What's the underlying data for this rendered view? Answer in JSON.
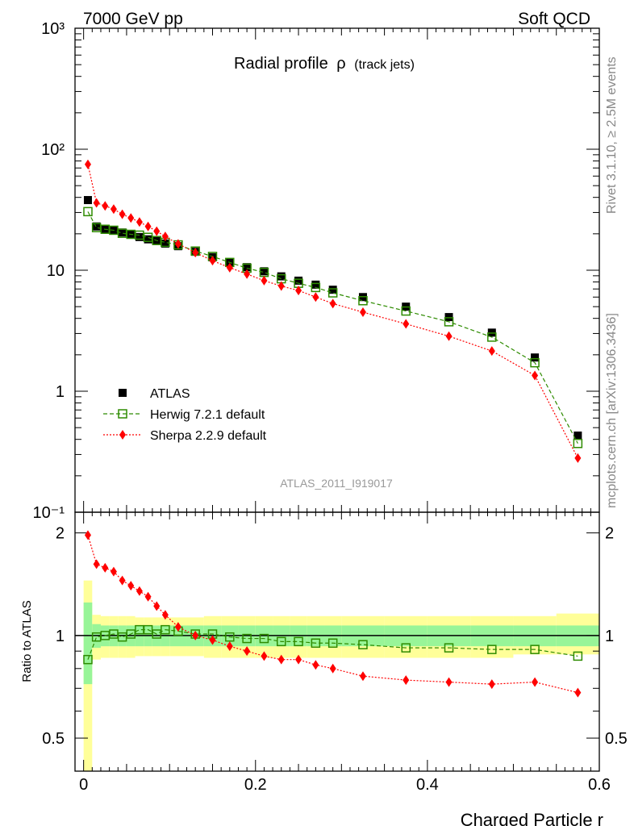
{
  "header": {
    "left": "7000 GeV pp",
    "right": "Soft QCD",
    "side_top": "Rivet 3.1.10, ≥ 2.5M events",
    "side_bottom": "mcplots.cern.ch [arXiv:1306.3436]"
  },
  "colors": {
    "atlas": "#000000",
    "herwig": "#2e8b00",
    "sherpa": "#ff0000",
    "band_inner": "#98f598",
    "band_outer": "#ffff99",
    "watermark": "#999999"
  },
  "chart_data": [
    {
      "type": "scatter",
      "panel": "main",
      "title": "Radial profile",
      "title_symbol": "ρ",
      "title_suffix": "(track jets)",
      "watermark": "ATLAS_2011_I919017",
      "yscale": "log",
      "xlim": [
        -0.01,
        0.6
      ],
      "ylim": [
        0.1,
        1000
      ],
      "y_tick_labels": [
        "10⁻¹",
        "1",
        "10",
        "10²",
        "10³"
      ],
      "legend_position": "lower-left",
      "x": [
        0.005,
        0.015,
        0.025,
        0.035,
        0.045,
        0.055,
        0.065,
        0.075,
        0.085,
        0.095,
        0.11,
        0.13,
        0.15,
        0.17,
        0.19,
        0.21,
        0.23,
        0.25,
        0.27,
        0.29,
        0.325,
        0.375,
        0.425,
        0.475,
        0.525,
        0.575
      ],
      "series": [
        {
          "name": "ATLAS",
          "marker": "square-filled",
          "values": [
            38,
            23,
            22,
            21.5,
            20.5,
            19.7,
            18.8,
            18,
            17.5,
            16.6,
            15.8,
            14.2,
            12.8,
            11.5,
            10.6,
            9.8,
            8.9,
            8.2,
            7.6,
            6.9,
            6.0,
            5.0,
            4.1,
            3.05,
            1.9,
            0.43
          ]
        },
        {
          "name": "Herwig 7.2.1 default",
          "marker": "square-open",
          "line": "dashed",
          "values": [
            30.5,
            22.5,
            21.8,
            21.4,
            20.2,
            19.8,
            19.5,
            18.7,
            17.6,
            17,
            16.2,
            14.4,
            13,
            11.6,
            10.4,
            9.6,
            8.5,
            7.8,
            7.2,
            6.5,
            5.6,
            4.6,
            3.75,
            2.8,
            1.72,
            0.37
          ]
        },
        {
          "name": "Sherpa 2.2.9 default",
          "marker": "diamond-filled",
          "line": "dotted",
          "values": [
            75,
            36,
            34,
            32,
            29,
            27,
            25,
            23,
            21,
            19,
            16.5,
            14,
            12,
            10.5,
            9.3,
            8.2,
            7.4,
            6.8,
            6.0,
            5.3,
            4.5,
            3.6,
            2.85,
            2.15,
            1.35,
            0.28
          ]
        }
      ]
    },
    {
      "type": "scatter",
      "panel": "ratio",
      "ylabel": "Ratio to ATLAS",
      "xlabel": "Charged Particle r",
      "xlim": [
        -0.01,
        0.6
      ],
      "ylim": [
        0.4,
        2.3
      ],
      "x_tick_labels": [
        "0",
        "0.2",
        "0.4",
        "0.6"
      ],
      "y_tick_labels": [
        "0.5",
        "1",
        "2"
      ],
      "x": [
        0.005,
        0.015,
        0.025,
        0.035,
        0.045,
        0.055,
        0.065,
        0.075,
        0.085,
        0.095,
        0.11,
        0.13,
        0.15,
        0.17,
        0.19,
        0.21,
        0.23,
        0.25,
        0.27,
        0.29,
        0.325,
        0.375,
        0.425,
        0.475,
        0.525,
        0.575
      ],
      "bands": {
        "edges": [
          0,
          0.01,
          0.02,
          0.03,
          0.04,
          0.05,
          0.06,
          0.07,
          0.08,
          0.09,
          0.1,
          0.12,
          0.14,
          0.16,
          0.18,
          0.2,
          0.22,
          0.24,
          0.26,
          0.28,
          0.3,
          0.35,
          0.4,
          0.45,
          0.5,
          0.55,
          0.6
        ],
        "inner": [
          [
            0.72,
            1.25
          ],
          [
            0.92,
            1.08
          ],
          [
            0.93,
            1.07
          ],
          [
            0.93,
            1.07
          ],
          [
            0.93,
            1.07
          ],
          [
            0.93,
            1.07
          ],
          [
            0.93,
            1.07
          ],
          [
            0.93,
            1.07
          ],
          [
            0.93,
            1.07
          ],
          [
            0.93,
            1.07
          ],
          [
            0.93,
            1.07
          ],
          [
            0.93,
            1.07
          ],
          [
            0.93,
            1.07
          ],
          [
            0.93,
            1.07
          ],
          [
            0.93,
            1.07
          ],
          [
            0.93,
            1.07
          ],
          [
            0.93,
            1.07
          ],
          [
            0.93,
            1.07
          ],
          [
            0.93,
            1.07
          ],
          [
            0.93,
            1.07
          ],
          [
            0.93,
            1.07
          ],
          [
            0.93,
            1.07
          ],
          [
            0.93,
            1.07
          ],
          [
            0.93,
            1.07
          ],
          [
            0.93,
            1.07
          ],
          [
            0.93,
            1.07
          ]
        ],
        "outer": [
          [
            0.3,
            1.45
          ],
          [
            0.85,
            1.15
          ],
          [
            0.86,
            1.14
          ],
          [
            0.86,
            1.14
          ],
          [
            0.86,
            1.14
          ],
          [
            0.86,
            1.14
          ],
          [
            0.87,
            1.13
          ],
          [
            0.87,
            1.13
          ],
          [
            0.87,
            1.13
          ],
          [
            0.87,
            1.13
          ],
          [
            0.87,
            1.13
          ],
          [
            0.87,
            1.13
          ],
          [
            0.86,
            1.14
          ],
          [
            0.86,
            1.14
          ],
          [
            0.86,
            1.14
          ],
          [
            0.86,
            1.14
          ],
          [
            0.86,
            1.14
          ],
          [
            0.86,
            1.14
          ],
          [
            0.86,
            1.14
          ],
          [
            0.86,
            1.14
          ],
          [
            0.86,
            1.14
          ],
          [
            0.86,
            1.14
          ],
          [
            0.86,
            1.14
          ],
          [
            0.86,
            1.14
          ],
          [
            0.88,
            1.14
          ],
          [
            0.88,
            1.16
          ]
        ]
      },
      "series": [
        {
          "name": "Herwig 7.2.1 default",
          "marker": "square-open",
          "line": "dashed",
          "values": [
            0.85,
            0.99,
            1.0,
            1.01,
            0.99,
            1.01,
            1.04,
            1.04,
            1.01,
            1.04,
            1.03,
            1.01,
            1.01,
            0.99,
            0.98,
            0.98,
            0.96,
            0.96,
            0.95,
            0.95,
            0.94,
            0.92,
            0.92,
            0.91,
            0.91,
            0.87
          ]
        },
        {
          "name": "Sherpa 2.2.9 default",
          "marker": "diamond-filled",
          "line": "dotted",
          "values": [
            1.97,
            1.62,
            1.58,
            1.54,
            1.45,
            1.4,
            1.35,
            1.3,
            1.22,
            1.15,
            1.06,
            1.0,
            0.97,
            0.93,
            0.9,
            0.87,
            0.85,
            0.85,
            0.82,
            0.8,
            0.76,
            0.74,
            0.73,
            0.72,
            0.73,
            0.68
          ]
        }
      ]
    }
  ]
}
